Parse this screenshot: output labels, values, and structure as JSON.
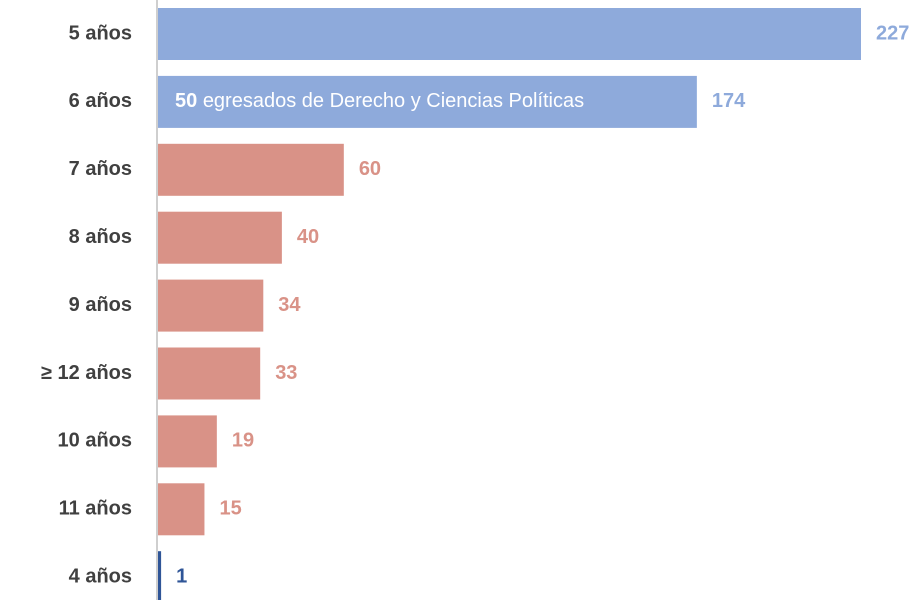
{
  "chart_data": {
    "type": "bar",
    "orientation": "horizontal",
    "categories": [
      "5 años",
      "6 años",
      "7 años",
      "8 años",
      "9 años",
      "≥ 12 años",
      "10 años",
      "11 años",
      "4 años"
    ],
    "values": [
      227,
      174,
      60,
      40,
      34,
      33,
      19,
      15,
      1
    ],
    "colors": [
      "#8eaadb",
      "#8eaadb",
      "#d99287",
      "#d99287",
      "#d99287",
      "#d99287",
      "#d99287",
      "#d99287",
      "#2f5597"
    ],
    "annotation": {
      "value": 50,
      "text": "egresados de Derecho y Ciencias Políticas"
    }
  }
}
